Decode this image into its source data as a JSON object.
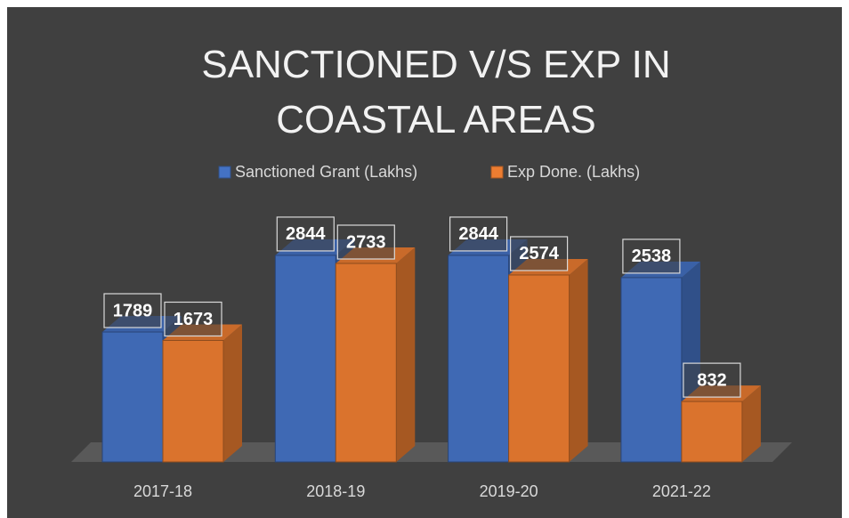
{
  "chart_data": {
    "type": "bar3d",
    "title": "SANCTIONED V/S EXP IN COASTAL AREAS",
    "categories": [
      "2017-18",
      "2018-19",
      "2019-20",
      "2021-22"
    ],
    "series": [
      {
        "name": "Sanctioned Grant (Lakhs)",
        "color": "#4472c4",
        "values": [
          1789,
          2844,
          2844,
          2538
        ]
      },
      {
        "name": "Exp Done. (Lakhs)",
        "color": "#ed7d31",
        "values": [
          1673,
          2733,
          2574,
          832
        ]
      }
    ],
    "legend": "top"
  }
}
